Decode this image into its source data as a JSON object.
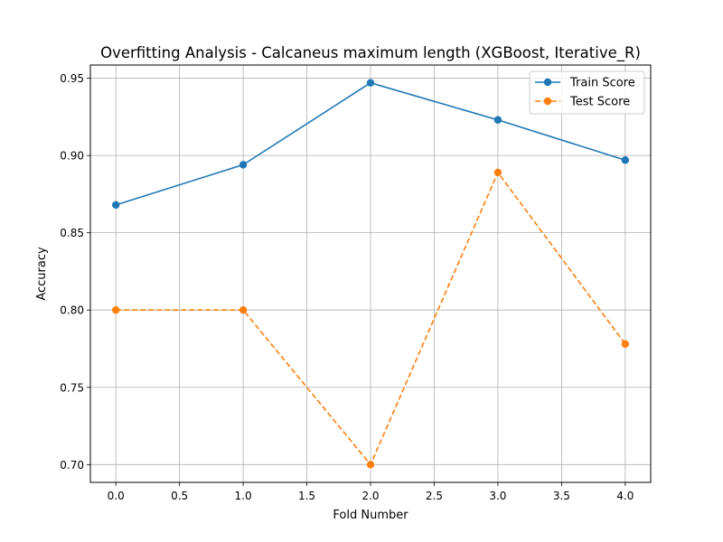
{
  "chart_data": {
    "type": "line",
    "title": "Overfitting Analysis - Calcaneus maximum length (XGBoost, Iterative_R)",
    "xlabel": "Fold Number",
    "ylabel": "Accuracy",
    "xlim": [
      -0.2,
      4.2
    ],
    "ylim": [
      0.6885,
      0.9585
    ],
    "xticks": [
      0.0,
      0.5,
      1.0,
      1.5,
      2.0,
      2.5,
      3.0,
      3.5,
      4.0
    ],
    "xtick_labels": [
      "0.0",
      "0.5",
      "1.0",
      "1.5",
      "2.0",
      "2.5",
      "3.0",
      "3.5",
      "4.0"
    ],
    "yticks": [
      0.7,
      0.75,
      0.8,
      0.85,
      0.9,
      0.95
    ],
    "ytick_labels": [
      "0.70",
      "0.75",
      "0.80",
      "0.85",
      "0.90",
      "0.95"
    ],
    "grid": true,
    "legend_position": "top-right",
    "x": [
      0,
      1,
      2,
      3,
      4
    ],
    "series": [
      {
        "name": "Train Score",
        "values": [
          0.868,
          0.894,
          0.947,
          0.923,
          0.897
        ],
        "color": "#1f77b4",
        "line_style": "solid",
        "marker": "circle"
      },
      {
        "name": "Test Score",
        "values": [
          0.8,
          0.8,
          0.7,
          0.889,
          0.778
        ],
        "color": "#ff7f0e",
        "line_style": "dashed",
        "marker": "circle"
      }
    ]
  }
}
